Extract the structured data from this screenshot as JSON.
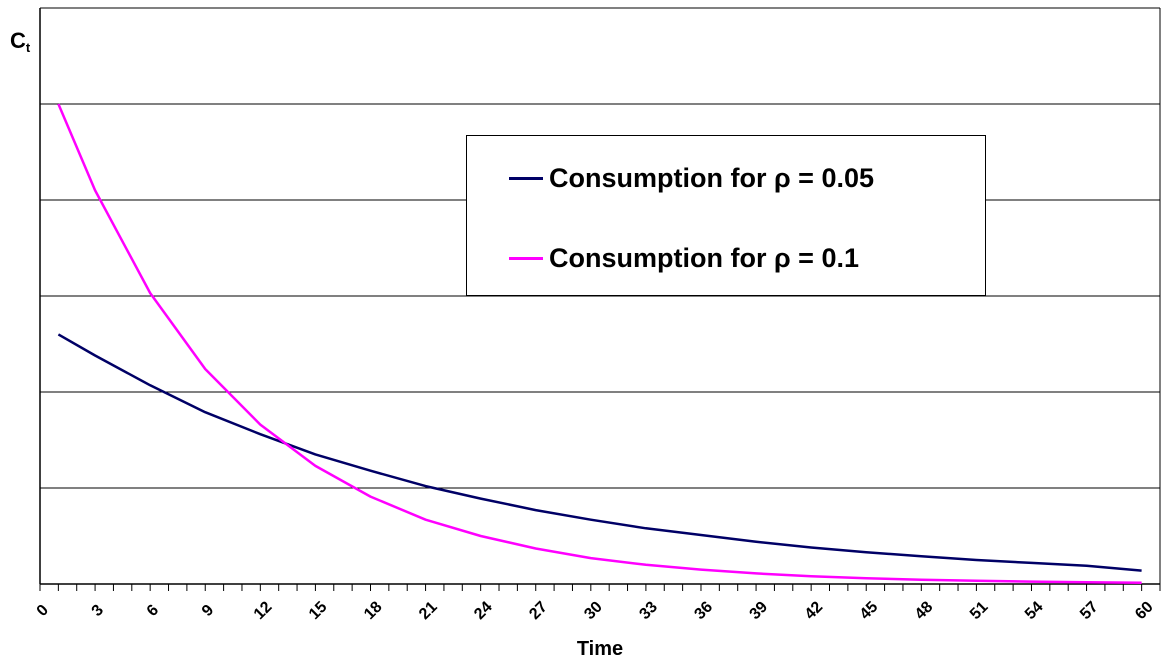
{
  "chart_data": {
    "type": "line",
    "xlabel": "Time",
    "ylabel": "C",
    "ylabel_subscript": "t",
    "x_ticks": [
      "0",
      "3",
      "6",
      "9",
      "12",
      "15",
      "18",
      "21",
      "24",
      "27",
      "30",
      "33",
      "36",
      "39",
      "42",
      "45",
      "48",
      "51",
      "54",
      "57",
      "60"
    ],
    "xlim": [
      0,
      61
    ],
    "ylim": [
      0,
      6
    ],
    "grid": "horizontal",
    "legend_position": "top-right",
    "series": [
      {
        "name": "Consumption for ρ = 0.05",
        "color": "#000066",
        "x": [
          1,
          3,
          6,
          9,
          12,
          15,
          18,
          21,
          24,
          27,
          30,
          33,
          36,
          39,
          42,
          45,
          48,
          51,
          54,
          57,
          60
        ],
        "values": [
          2.6,
          2.38,
          2.07,
          1.79,
          1.56,
          1.35,
          1.18,
          1.02,
          0.89,
          0.77,
          0.67,
          0.58,
          0.51,
          0.44,
          0.38,
          0.33,
          0.29,
          0.25,
          0.22,
          0.19,
          0.14
        ]
      },
      {
        "name": "Consumption for ρ = 0.1",
        "color": "#ff00ff",
        "x": [
          1,
          3,
          6,
          9,
          12,
          15,
          18,
          21,
          24,
          27,
          30,
          33,
          36,
          39,
          42,
          45,
          48,
          51,
          54,
          57,
          60
        ],
        "values": [
          5.0,
          4.1,
          3.03,
          2.24,
          1.66,
          1.23,
          0.91,
          0.67,
          0.5,
          0.37,
          0.27,
          0.2,
          0.15,
          0.11,
          0.08,
          0.06,
          0.045,
          0.033,
          0.025,
          0.018,
          0.013
        ]
      }
    ]
  }
}
